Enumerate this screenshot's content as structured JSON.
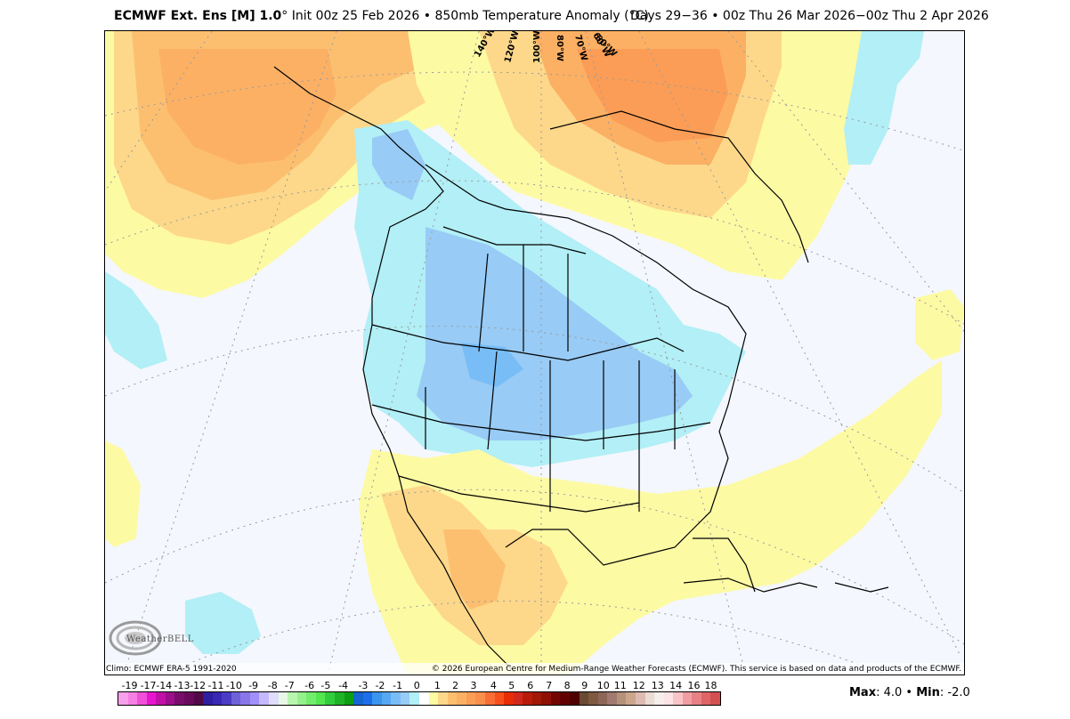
{
  "header": {
    "model": "ECMWF Ext. Ens [M] 1.0",
    "degree_symbol": "°",
    "init": "Init 00z 25 Feb 2026",
    "separator": "•",
    "field": "850mb Temperature Anomaly (°C)",
    "period": "Days 29−36 • 00z Thu 26 Mar 2026−00z Thu 2 Apr 2026"
  },
  "map": {
    "projection": "polar stereographic North America",
    "background_color": "#f4f7fd",
    "longitude_labels": [
      "140°W",
      "120°W",
      "100°W",
      "80°W",
      "70°W",
      "60°W",
      "50°W"
    ],
    "regions": [
      {
        "name": "north-pacific-alaska-warm",
        "anomaly_range": "1 to 4",
        "color": "#fdb870"
      },
      {
        "name": "greenland-baffin-warm",
        "anomaly_range": "1 to 5",
        "color": "#fc8d59"
      },
      {
        "name": "western-canada-central-us-cold",
        "anomaly_range": "-1 to -3",
        "color": "#98cbf5"
      },
      {
        "name": "mexico-southwest-warm",
        "anomaly_range": "1 to 3",
        "color": "#fdd08a"
      },
      {
        "name": "atlantic-gulf-slight-warm",
        "anomaly_range": "0 to 1",
        "color": "#fdfaa4"
      },
      {
        "name": "north-atlantic-cold",
        "anomaly_range": "-1",
        "color": "#b2eff6"
      },
      {
        "name": "east-pacific-cold",
        "anomaly_range": "-1",
        "color": "#b2eff6"
      }
    ]
  },
  "footer": {
    "climo": "Climo: ECMWF ERA-5 1991-2020",
    "copyright": "© 2026 European Centre for Medium-Range Weather Forecasts (ECMWF). This service is based on data and products of the ECMWF.",
    "logo": "WeatherBELL"
  },
  "colorbar": {
    "labels": [
      "-19",
      "-17",
      "-14",
      "-13",
      "-12",
      "-11",
      "-10",
      "-9",
      "-8",
      "-7",
      "-6",
      "-5",
      "-4",
      "-3",
      "-2",
      "-1",
      "0",
      "1",
      "2",
      "3",
      "4",
      "5",
      "6",
      "7",
      "8",
      "9",
      "10",
      "11",
      "12",
      "13",
      "14",
      "16",
      "18"
    ],
    "colors": [
      "#f9a0ea",
      "#f67fe4",
      "#f04fd9",
      "#e815cf",
      "#c010a8",
      "#9c0f8a",
      "#7a0c6b",
      "#680a5a",
      "#520746",
      "#2e1fa1",
      "#3a27b3",
      "#4b3cc4",
      "#6f62d9",
      "#8977ea",
      "#a190f9",
      "#c5b9fb",
      "#e0ddfb",
      "#e8f8e6",
      "#b8f6b0",
      "#94f08d",
      "#72ec6d",
      "#54e64f",
      "#33cc3d",
      "#1fb327",
      "#0d9e13",
      "#1566d0",
      "#1c6fe8",
      "#3b94ee",
      "#55a8f1",
      "#78bdf6",
      "#98cbf5",
      "#b2eff6",
      "#ffffff",
      "#fdfaa4",
      "#fdd88a",
      "#fcbf70",
      "#fcb064",
      "#fb9d56",
      "#fa8f4b",
      "#f86e35",
      "#f7501c",
      "#e82c06",
      "#d1281d",
      "#b81b0a",
      "#a01806",
      "#8e1005",
      "#740602",
      "#620101",
      "#4f0000",
      "#6b4a33",
      "#7d5a40",
      "#8e6659",
      "#a27a70",
      "#b49279",
      "#cca68c",
      "#deBBB2",
      "#ebdcd4",
      "#f5eeea",
      "#fbe3e6",
      "#f9c4c8",
      "#f09ea2",
      "#e78185",
      "#de6466",
      "#d44f50"
    ],
    "label_positions_pct": [
      2.0,
      5.1,
      7.7,
      10.7,
      13.3,
      16.3,
      19.3,
      22.5,
      25.7,
      28.5,
      31.8,
      34.5,
      37.4,
      40.7,
      43.5,
      46.4,
      49.6,
      53.0,
      56.0,
      59.0,
      62.3,
      65.3,
      68.4,
      71.5,
      74.5,
      77.4,
      80.5,
      83.3,
      86.4,
      89.5,
      92.5,
      95.5,
      98.3
    ]
  },
  "stats": {
    "max_label": "Max",
    "max_value": ": 4.0",
    "separator": " • ",
    "min_label": "Min",
    "min_value": ": -2.0"
  }
}
